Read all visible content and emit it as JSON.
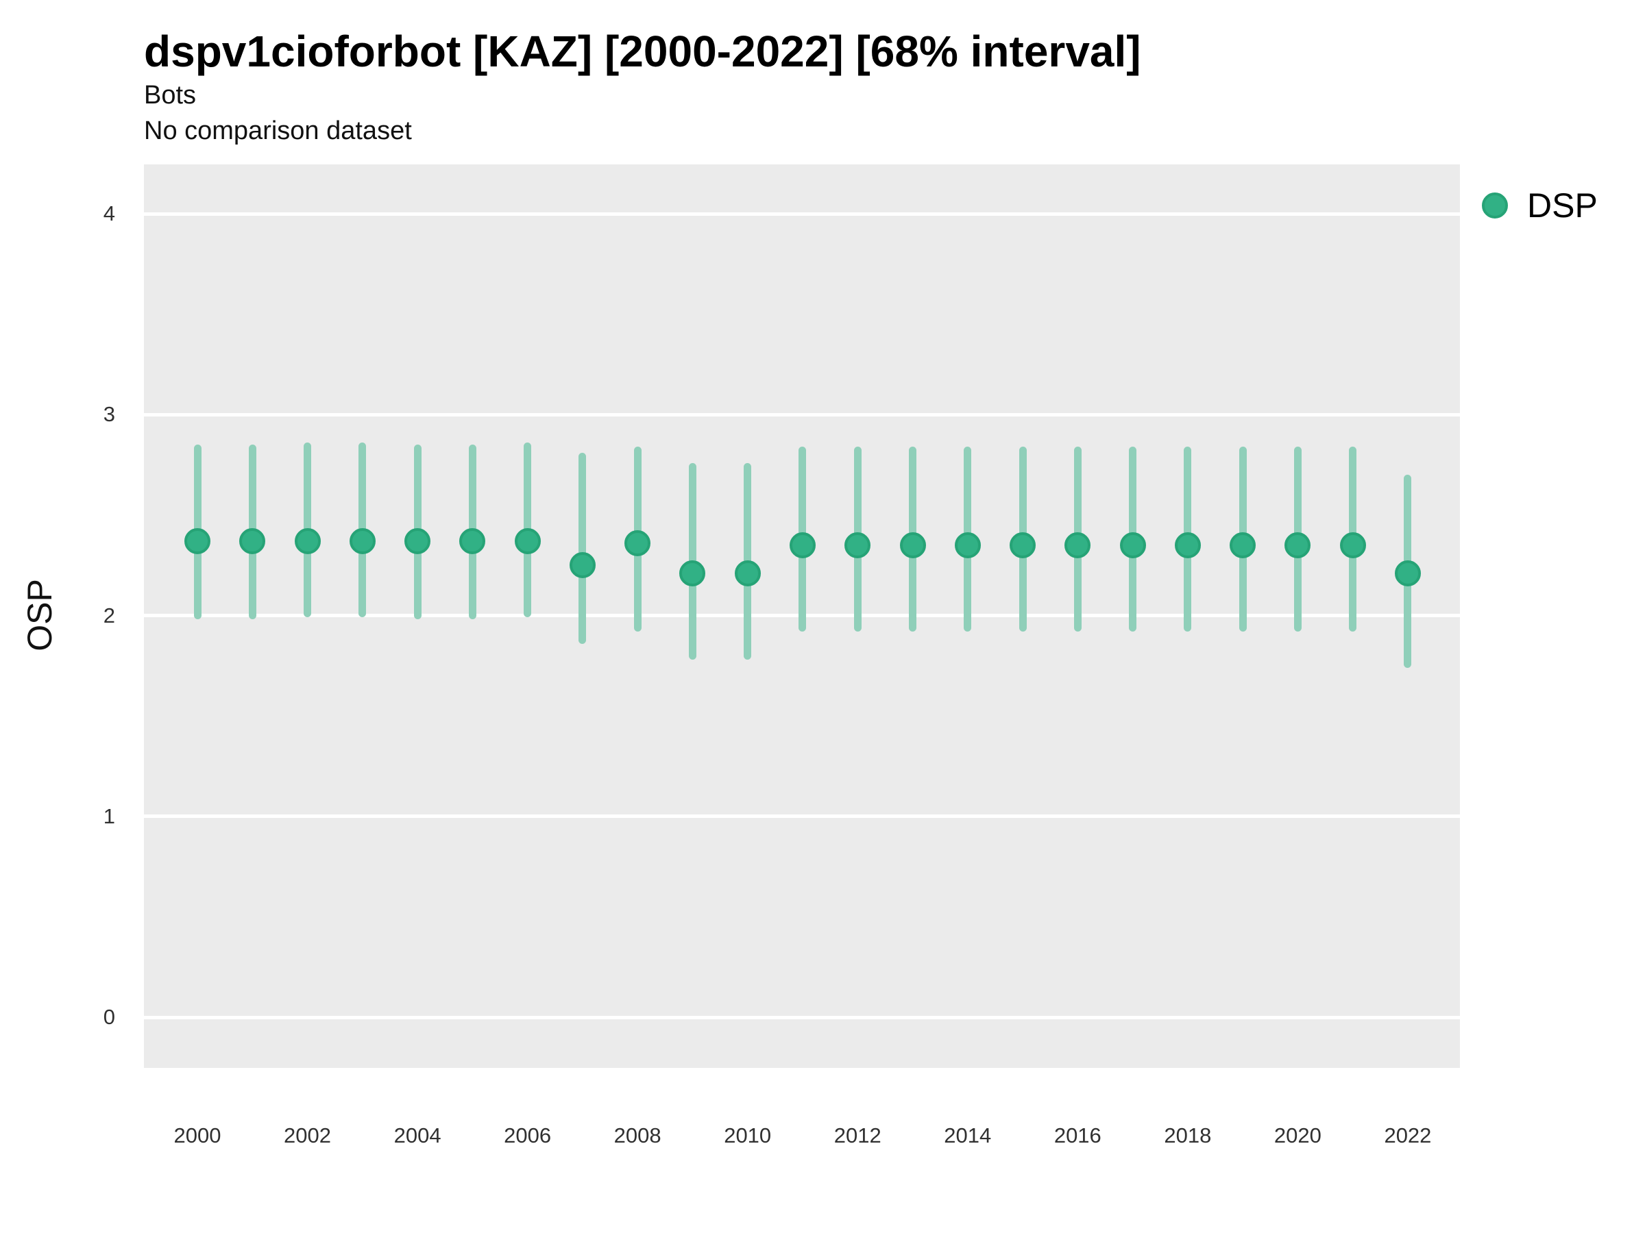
{
  "header": {
    "title": "dspv1cioforbot [KAZ] [2000-2022] [68% interval]",
    "subtitle": "Bots",
    "comparison_note": "No comparison dataset"
  },
  "legend": {
    "position": "right",
    "items": [
      {
        "label": "DSP",
        "marker": "circle"
      }
    ]
  },
  "colors": {
    "panel_background": "#EBEBEB",
    "gridline": "#FFFFFF",
    "point_fill": "#31B185",
    "point_stroke": "#26A376",
    "interval_line": "#8FCFB9",
    "title_text": "#000000",
    "tick_text": "#303030"
  },
  "axes": {
    "y_title": "OSP",
    "y_tick_labels": [
      "4",
      "3",
      "2",
      "1",
      "0"
    ],
    "x_tick_labels": [
      "2000",
      "2002",
      "2004",
      "2006",
      "2008",
      "2010",
      "2012",
      "2014",
      "2016",
      "2018",
      "2020",
      "2022"
    ]
  },
  "chart_data": {
    "type": "scatter",
    "subtype": "pointrange-interval",
    "title": "dspv1cioforbot [KAZ] [2000-2022] [68% interval]",
    "subtitle": "Bots",
    "note": "No comparison dataset",
    "interval_level": "68%",
    "xlabel": "",
    "ylabel": "OSP",
    "grid": "horizontal-major-only",
    "legend_position": "right",
    "xlim": [
      1998.9,
      2023.1
    ],
    "ylim": [
      -0.26,
      4.25
    ],
    "y_gridline_values": [
      4,
      3,
      2,
      1,
      0
    ],
    "x_tick_values": [
      2000,
      2002,
      2004,
      2006,
      2008,
      2010,
      2012,
      2014,
      2016,
      2018,
      2020,
      2022
    ],
    "x": [
      2000,
      2001,
      2002,
      2003,
      2004,
      2005,
      2006,
      2007,
      2008,
      2009,
      2010,
      2011,
      2012,
      2013,
      2014,
      2015,
      2016,
      2017,
      2018,
      2019,
      2020,
      2021,
      2022
    ],
    "series": [
      {
        "name": "DSP",
        "y": [
          2.37,
          2.37,
          2.37,
          2.37,
          2.37,
          2.37,
          2.37,
          2.25,
          2.36,
          2.21,
          2.21,
          2.35,
          2.35,
          2.35,
          2.35,
          2.35,
          2.35,
          2.35,
          2.35,
          2.35,
          2.35,
          2.35,
          2.21
        ],
        "y_lo": [
          1.98,
          1.98,
          1.99,
          1.99,
          1.98,
          1.98,
          1.99,
          1.86,
          1.92,
          1.78,
          1.78,
          1.92,
          1.92,
          1.92,
          1.92,
          1.92,
          1.92,
          1.92,
          1.92,
          1.92,
          1.92,
          1.92,
          1.74
        ],
        "y_hi": [
          2.85,
          2.85,
          2.86,
          2.86,
          2.85,
          2.85,
          2.86,
          2.81,
          2.84,
          2.76,
          2.76,
          2.84,
          2.84,
          2.84,
          2.84,
          2.84,
          2.84,
          2.84,
          2.84,
          2.84,
          2.84,
          2.84,
          2.7
        ]
      }
    ]
  }
}
